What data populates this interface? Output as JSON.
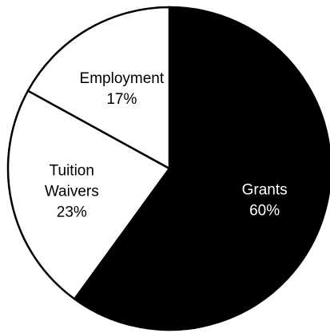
{
  "chart_data": {
    "type": "pie",
    "slices": [
      {
        "name": "Grants",
        "value": 60,
        "value_label": "60%",
        "fill": "#000000",
        "text_color": "#ffffff"
      },
      {
        "name": "Tuition Waivers",
        "name_lines": [
          "Tuition",
          "Waivers"
        ],
        "value": 23,
        "value_label": "23%",
        "fill": "#ffffff",
        "text_color": "#000000"
      },
      {
        "name": "Employment",
        "value": 17,
        "value_label": "17%",
        "fill": "#ffffff",
        "text_color": "#000000"
      }
    ],
    "start_position": "12 o'clock",
    "direction": "clockwise",
    "legend": "none"
  }
}
